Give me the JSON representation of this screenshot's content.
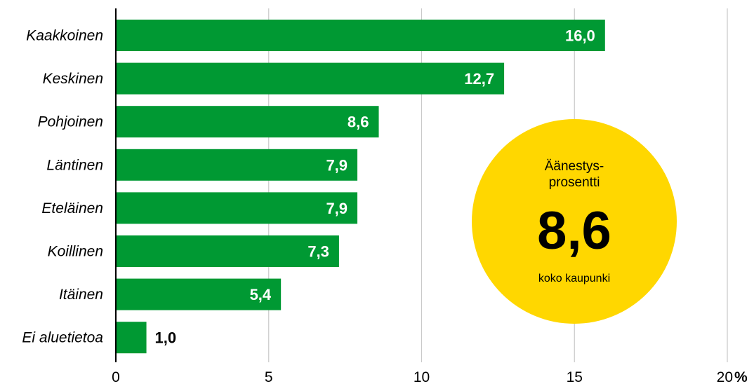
{
  "colors": {
    "bar": "#009933",
    "circle": "#ffd700",
    "grid": "#c8c8c8",
    "axis": "#000000",
    "inside_label": "#ffffff",
    "outside_label": "#000000"
  },
  "chart_data": {
    "type": "bar",
    "orientation": "horizontal",
    "categories": [
      "Kaakkoinen",
      "Keskinen",
      "Pohjoinen",
      "Läntinen",
      "Eteläinen",
      "Koillinen",
      "Itäinen",
      "Ei aluetietoa"
    ],
    "values": [
      16.0,
      12.7,
      8.6,
      7.9,
      7.9,
      7.3,
      5.4,
      1.0
    ],
    "value_labels": [
      "16,0",
      "12,7",
      "8,6",
      "7,9",
      "7,9",
      "7,3",
      "5,4",
      "1,0"
    ],
    "xlim": [
      0,
      20
    ],
    "xticks": [
      0,
      5,
      10,
      15,
      20
    ],
    "xtick_labels": [
      "0",
      "5",
      "10",
      "15",
      "20"
    ],
    "unit_label": "%",
    "grid": true,
    "legend": "none"
  },
  "callout": {
    "line1": "Äänestys-",
    "line2": "prosentti",
    "value": "8,6",
    "caption": "koko kaupunki"
  }
}
